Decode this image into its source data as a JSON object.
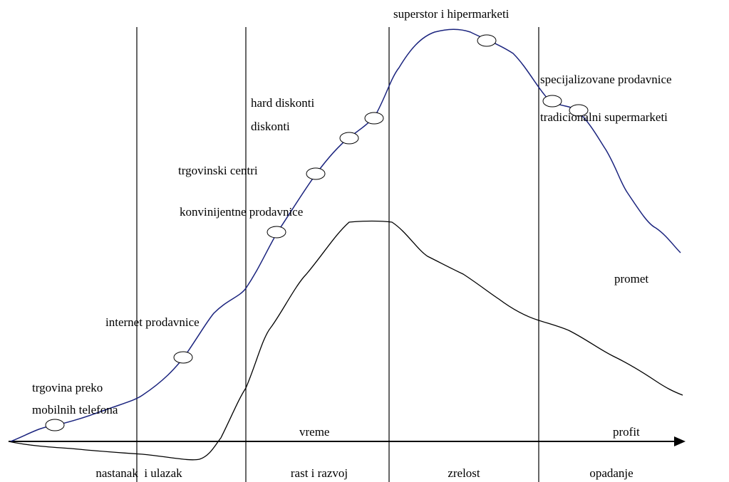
{
  "labels": {
    "formats": [
      "superstor i hipermarketi",
      "specijalizovane prodavnice",
      "tradicionalni supermarketi",
      "hard diskonti",
      "diskonti",
      "trgovinski centri",
      "konvinijentne prodavnice",
      "internet prodavnice",
      "trgovina preko",
      "mobilnih telefona"
    ],
    "curves": {
      "sales": "promet",
      "profit": "profit"
    },
    "axis": "vreme",
    "phases": [
      "nastanak  i ulazak",
      "rast i razvoj",
      "zrelost",
      "opadanje"
    ]
  }
}
